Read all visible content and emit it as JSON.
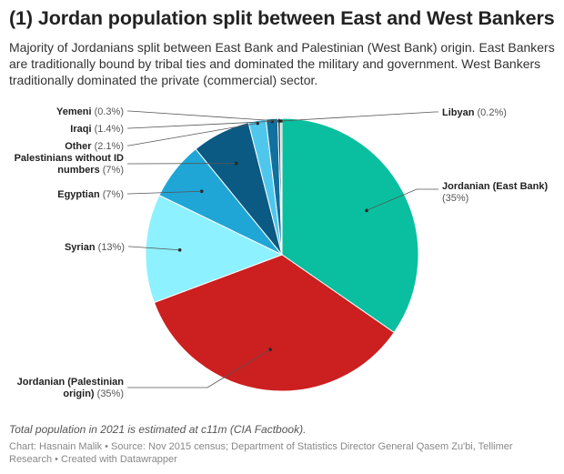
{
  "title": "(1) Jordan population split between East and West Bankers",
  "subtitle": "Majority of Jordanians split between East Bank and Palestinian (West Bank) origin. East Bankers are traditionally bound by tribal ties and dominated the military and government. West Bankers traditionally dominated the private (commercial) sector.",
  "notes": "Total population in 2021 is estimated at c11m (CIA Factbook).",
  "credit": "Chart: Hasnain Malik • Source: Nov 2015 census; Department of Statistics Director General Qasem Zu'bi, Tellimer Research • Created with Datawrapper",
  "chart_data": {
    "type": "pie",
    "slices": [
      {
        "name": "Jordanian (East Bank)",
        "value": 35,
        "display": "(35%)",
        "color": "#0abf9f"
      },
      {
        "name": "Jordanian (Palestinian origin)",
        "value": 35,
        "display": "(35%)",
        "color": "#cc1f20"
      },
      {
        "name": "Syrian",
        "value": 13,
        "display": "(13%)",
        "color": "#8df1ff"
      },
      {
        "name": "Egyptian",
        "value": 7,
        "display": "(7%)",
        "color": "#1fa6d6"
      },
      {
        "name": "Palestinians without ID numbers",
        "value": 7,
        "display": "(7%)",
        "color": "#0a5a83"
      },
      {
        "name": "Other",
        "value": 2.1,
        "display": "(2.1%)",
        "color": "#4fc7ec"
      },
      {
        "name": "Iraqi",
        "value": 1.4,
        "display": "(1.4%)",
        "color": "#10709e"
      },
      {
        "name": "Yemeni",
        "value": 0.3,
        "display": "(0.3%)",
        "color": "#3b3b3b"
      },
      {
        "name": "Libyan",
        "value": 0.2,
        "display": "(0.2%)",
        "color": "#74d7c8"
      }
    ]
  }
}
